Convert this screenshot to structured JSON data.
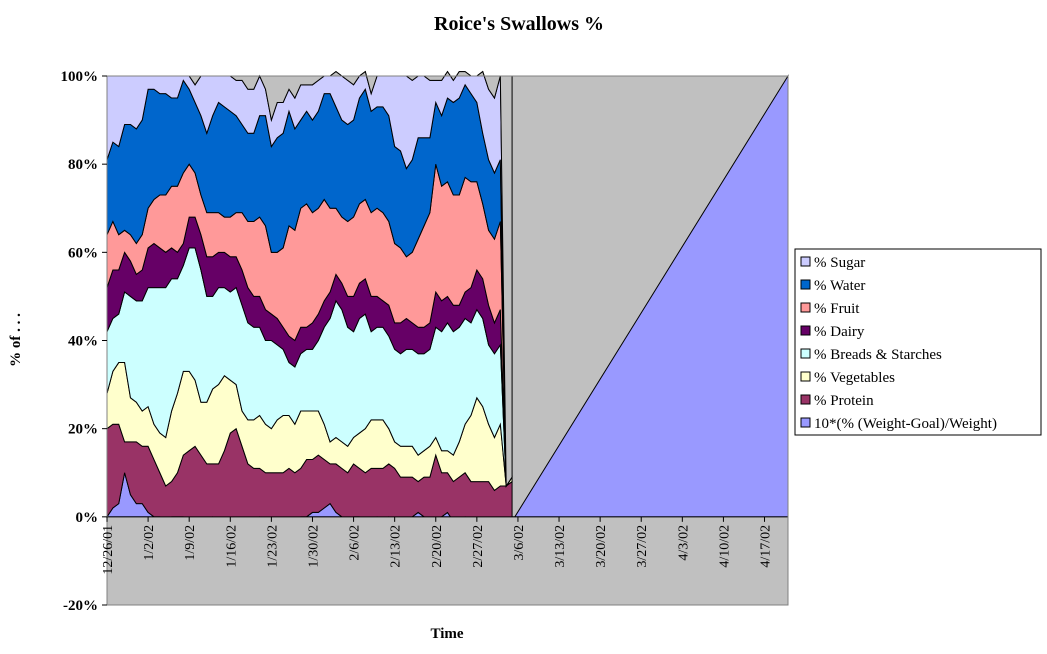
{
  "chart_data": {
    "type": "area",
    "stacked": true,
    "title": "Roice's Swallows %",
    "xlabel": "Time",
    "ylabel": "% of . . .",
    "ylim": [
      -20,
      100
    ],
    "y_ticks": [
      "-20%",
      "0%",
      "20%",
      "40%",
      "60%",
      "80%",
      "100%"
    ],
    "y_tick_values": [
      -20,
      0,
      20,
      40,
      60,
      80,
      100
    ],
    "x_tick_labels": [
      "12/26/01",
      "1/2/02",
      "1/9/02",
      "1/16/02",
      "1/23/02",
      "1/30/02",
      "2/6/02",
      "2/13/02",
      "2/20/02",
      "2/27/02",
      "3/6/02",
      "3/13/02",
      "3/20/02",
      "3/27/02",
      "4/3/02",
      "4/10/02",
      "4/17/02"
    ],
    "x_range": [
      "12/26/01",
      "4/21/02"
    ],
    "legend_placement": "right",
    "plot_area_color": "#C0C0C0",
    "below_zero_color": "#C0C0C0",
    "x": [
      "12/26/01",
      "12/27/01",
      "12/28/01",
      "12/29/01",
      "12/30/01",
      "12/31/01",
      "1/1/02",
      "1/2/02",
      "1/3/02",
      "1/4/02",
      "1/5/02",
      "1/6/02",
      "1/7/02",
      "1/8/02",
      "1/9/02",
      "1/10/02",
      "1/11/02",
      "1/12/02",
      "1/13/02",
      "1/14/02",
      "1/15/02",
      "1/16/02",
      "1/17/02",
      "1/18/02",
      "1/19/02",
      "1/20/02",
      "1/21/02",
      "1/22/02",
      "1/23/02",
      "1/24/02",
      "1/25/02",
      "1/26/02",
      "1/27/02",
      "1/28/02",
      "1/29/02",
      "1/30/02",
      "1/31/02",
      "2/1/02",
      "2/2/02",
      "2/3/02",
      "2/4/02",
      "2/5/02",
      "2/6/02",
      "2/7/02",
      "2/8/02",
      "2/9/02",
      "2/10/02",
      "2/11/02",
      "2/12/02",
      "2/13/02",
      "2/14/02",
      "2/15/02",
      "2/16/02",
      "2/17/02",
      "2/18/02",
      "2/19/02",
      "2/20/02",
      "2/21/02",
      "2/22/02",
      "2/23/02",
      "2/24/02",
      "2/25/02",
      "2/26/02",
      "2/27/02",
      "2/28/02",
      "3/1/02",
      "3/2/02",
      "3/3/02",
      "3/4/02",
      "3/5/02"
    ],
    "series": [
      {
        "name": "10*(% (Weight-Goal)/Weight)",
        "color": "#9999FF",
        "values": [
          0,
          2,
          3,
          10,
          5,
          3,
          3,
          1,
          0,
          0,
          -1,
          0,
          0,
          0,
          -1,
          -1,
          -1,
          -1,
          0,
          -1,
          -1,
          -1,
          -2,
          -2,
          -1,
          -1,
          0,
          -1,
          0,
          -1,
          -1,
          -1,
          -1,
          0,
          0,
          1,
          1,
          2,
          3,
          1,
          0,
          -1,
          0,
          0,
          -1,
          -1,
          0,
          -1,
          0,
          -1,
          -1,
          -2,
          0,
          1,
          0,
          -1,
          -1,
          0,
          1,
          -1,
          -1,
          0,
          -1,
          -1,
          -1,
          -1,
          -2,
          -2,
          -2,
          -1
        ]
      },
      {
        "name": "% Protein",
        "color": "#993366",
        "values": [
          20,
          19,
          18,
          7,
          12,
          14,
          13,
          15,
          13,
          10,
          8,
          8,
          10,
          14,
          16,
          17,
          15,
          13,
          12,
          13,
          16,
          20,
          22,
          18,
          13,
          12,
          11,
          11,
          10,
          11,
          11,
          12,
          11,
          11,
          13,
          12,
          13,
          11,
          9,
          11,
          11,
          11,
          12,
          11,
          11,
          12,
          11,
          12,
          12,
          12,
          10,
          11,
          9,
          7,
          9,
          10,
          15,
          10,
          9,
          9,
          10,
          10,
          9,
          9,
          9,
          9,
          8,
          9,
          9,
          9
        ]
      },
      {
        "name": "% Vegetables",
        "color": "#FFFFCC",
        "values": [
          8,
          12,
          14,
          18,
          10,
          9,
          8,
          9,
          8,
          9,
          11,
          16,
          18,
          19,
          18,
          15,
          12,
          14,
          17,
          18,
          17,
          12,
          10,
          8,
          10,
          11,
          12,
          11,
          10,
          12,
          13,
          12,
          11,
          13,
          11,
          11,
          10,
          8,
          5,
          6,
          6,
          6,
          6,
          8,
          10,
          11,
          11,
          11,
          8,
          6,
          7,
          7,
          7,
          6,
          6,
          7,
          4,
          5,
          5,
          6,
          8,
          11,
          15,
          19,
          17,
          13,
          12,
          14,
          0,
          1
        ]
      },
      {
        "name": "% Breads & Starches",
        "color": "#CCFFFF",
        "values": [
          14,
          12,
          11,
          16,
          23,
          23,
          25,
          27,
          31,
          33,
          34,
          30,
          26,
          24,
          28,
          30,
          30,
          24,
          21,
          22,
          20,
          20,
          22,
          24,
          22,
          21,
          20,
          19,
          20,
          17,
          15,
          12,
          13,
          13,
          14,
          14,
          16,
          22,
          28,
          31,
          30,
          27,
          24,
          26,
          26,
          20,
          21,
          21,
          21,
          21,
          21,
          22,
          22,
          23,
          22,
          22,
          25,
          27,
          29,
          28,
          26,
          24,
          21,
          20,
          20,
          18,
          19,
          18,
          0,
          0
        ]
      },
      {
        "name": "% Dairy",
        "color": "#660066",
        "values": [
          10,
          11,
          10,
          9,
          8,
          6,
          7,
          9,
          10,
          9,
          8,
          7,
          6,
          5,
          7,
          7,
          8,
          9,
          9,
          8,
          8,
          8,
          7,
          8,
          8,
          7,
          7,
          7,
          6,
          6,
          5,
          6,
          6,
          6,
          5,
          6,
          6,
          6,
          6,
          6,
          6,
          7,
          8,
          8,
          8,
          8,
          7,
          6,
          7,
          6,
          7,
          7,
          6,
          6,
          6,
          6,
          8,
          7,
          6,
          6,
          5,
          6,
          8,
          9,
          9,
          9,
          7,
          8,
          0,
          0
        ]
      },
      {
        "name": "% Fruit",
        "color": "#FF9999",
        "values": [
          12,
          11,
          8,
          5,
          6,
          7,
          8,
          9,
          10,
          12,
          13,
          14,
          15,
          16,
          12,
          10,
          9,
          10,
          10,
          9,
          8,
          9,
          10,
          13,
          15,
          17,
          18,
          19,
          14,
          15,
          18,
          25,
          25,
          27,
          28,
          25,
          24,
          23,
          19,
          15,
          15,
          17,
          18,
          18,
          18,
          19,
          20,
          20,
          19,
          18,
          17,
          14,
          16,
          20,
          23,
          25,
          29,
          26,
          26,
          25,
          25,
          26,
          24,
          20,
          17,
          17,
          19,
          20,
          0,
          0
        ]
      },
      {
        "name": "% Water",
        "color": "#0066CC",
        "values": [
          17,
          18,
          20,
          24,
          25,
          26,
          26,
          27,
          25,
          23,
          23,
          20,
          20,
          21,
          17,
          16,
          18,
          18,
          22,
          25,
          25,
          24,
          22,
          20,
          20,
          20,
          23,
          25,
          24,
          26,
          26,
          26,
          23,
          20,
          21,
          21,
          22,
          24,
          26,
          23,
          22,
          22,
          22,
          24,
          25,
          23,
          23,
          24,
          24,
          22,
          22,
          20,
          21,
          23,
          20,
          17,
          14,
          16,
          19,
          21,
          22,
          21,
          20,
          18,
          16,
          16,
          15,
          14,
          0,
          0
        ]
      },
      {
        "name": "% Sugar",
        "color": "#CCCCFF",
        "values": [
          19,
          15,
          16,
          11,
          11,
          12,
          10,
          3,
          3,
          4,
          4,
          5,
          5,
          1,
          3,
          4,
          9,
          13,
          9,
          6,
          7,
          8,
          8,
          10,
          10,
          10,
          9,
          6,
          6,
          8,
          7,
          5,
          7,
          8,
          6,
          8,
          7,
          4,
          4,
          8,
          10,
          10,
          8,
          5,
          4,
          4,
          7,
          7,
          9,
          16,
          17,
          21,
          18,
          14,
          14,
          13,
          5,
          8,
          6,
          5,
          6,
          3,
          4,
          6,
          14,
          16,
          17,
          19,
          0,
          0
        ]
      }
    ]
  }
}
